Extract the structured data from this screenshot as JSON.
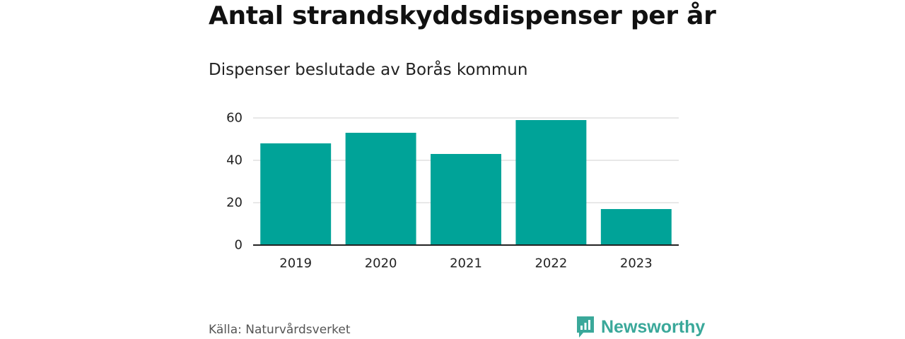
{
  "title": "Antal strandskyddsdispenser per år",
  "subtitle": "Dispenser beslutade av Borås kommun",
  "source": "Källa: Naturvårdsverket",
  "brand": {
    "name": "Newsworthy",
    "logo_icon": "newsworthy-logo-icon",
    "color": "#3aa89a"
  },
  "colors": {
    "bar": "#00a398",
    "grid": "#d9d9d9",
    "axis": "#222222"
  },
  "chart_data": {
    "type": "bar",
    "title": "Antal strandskyddsdispenser per år",
    "subtitle": "Dispenser beslutade av Borås kommun",
    "categories": [
      "2019",
      "2020",
      "2021",
      "2022",
      "2023"
    ],
    "values": [
      48,
      53,
      43,
      59,
      17
    ],
    "yticks": [
      0,
      20,
      40,
      60
    ],
    "ylim": [
      0,
      60
    ],
    "xlabel": "",
    "ylabel": "",
    "grid": true,
    "legend": "none"
  }
}
